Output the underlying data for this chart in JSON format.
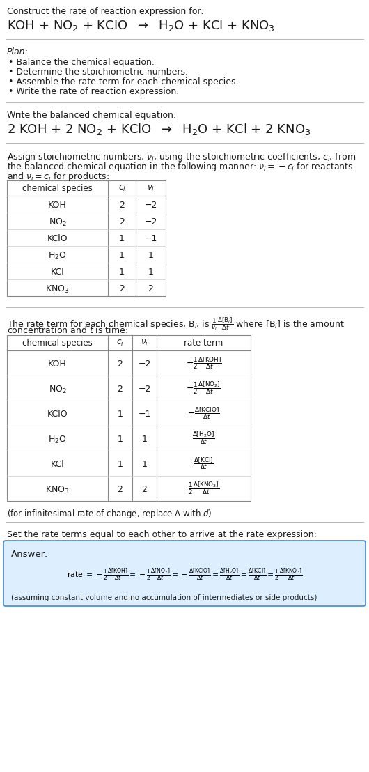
{
  "bg_color": "#ffffff",
  "text_color": "#000000",
  "title_text": "Construct the rate of reaction expression for:",
  "plan_header": "Plan:",
  "plan_items": [
    "• Balance the chemical equation.",
    "• Determine the stoichiometric numbers.",
    "• Assemble the rate term for each chemical species.",
    "• Write the rate of reaction expression."
  ],
  "balanced_header": "Write the balanced chemical equation:",
  "stoich_intro_1": "Assign stoichiometric numbers, $\\nu_i$, using the stoichiometric coefficients, $c_i$, from",
  "stoich_intro_2": "the balanced chemical equation in the following manner: $\\nu_i = -c_i$ for reactants",
  "stoich_intro_3": "and $\\nu_i = c_i$ for products:",
  "table1_headers": [
    "chemical species",
    "$c_i$",
    "$\\nu_i$"
  ],
  "table1_rows": [
    [
      "KOH",
      "2",
      "−2"
    ],
    [
      "NO$_2$",
      "2",
      "−2"
    ],
    [
      "KClO",
      "1",
      "−1"
    ],
    [
      "H$_2$O",
      "1",
      "1"
    ],
    [
      "KCl",
      "1",
      "1"
    ],
    [
      "KNO$_3$",
      "2",
      "2"
    ]
  ],
  "rate_intro_1": "The rate term for each chemical species, B$_i$, is $\\frac{1}{\\nu_i}\\frac{\\Delta[\\mathrm{B}_i]}{\\Delta t}$ where [B$_i$] is the amount",
  "rate_intro_2": "concentration and $t$ is time:",
  "table2_headers": [
    "chemical species",
    "$c_i$",
    "$\\nu_i$",
    "rate term"
  ],
  "table2_rows": [
    [
      "KOH",
      "2",
      "−2",
      "$-\\frac{1}{2}\\frac{\\Delta[\\mathrm{KOH}]}{\\Delta t}$"
    ],
    [
      "NO$_2$",
      "2",
      "−2",
      "$-\\frac{1}{2}\\frac{\\Delta[\\mathrm{NO}_2]}{\\Delta t}$"
    ],
    [
      "KClO",
      "1",
      "−1",
      "$-\\frac{\\Delta[\\mathrm{KClO}]}{\\Delta t}$"
    ],
    [
      "H$_2$O",
      "1",
      "1",
      "$\\frac{\\Delta[\\mathrm{H}_2\\mathrm{O}]}{\\Delta t}$"
    ],
    [
      "KCl",
      "1",
      "1",
      "$\\frac{\\Delta[\\mathrm{KCl}]}{\\Delta t}$"
    ],
    [
      "KNO$_3$",
      "2",
      "2",
      "$\\frac{1}{2}\\frac{\\Delta[\\mathrm{KNO}_3]}{\\Delta t}$"
    ]
  ],
  "infinitesimal_note": "(for infinitesimal rate of change, replace Δ with $d$)",
  "set_equal_text": "Set the rate terms equal to each other to arrive at the rate expression:",
  "answer_box_color": "#ddeeff",
  "answer_box_border": "#4488cc",
  "answer_label": "Answer:",
  "answer_footnote": "(assuming constant volume and no accumulation of intermediates or side products)"
}
